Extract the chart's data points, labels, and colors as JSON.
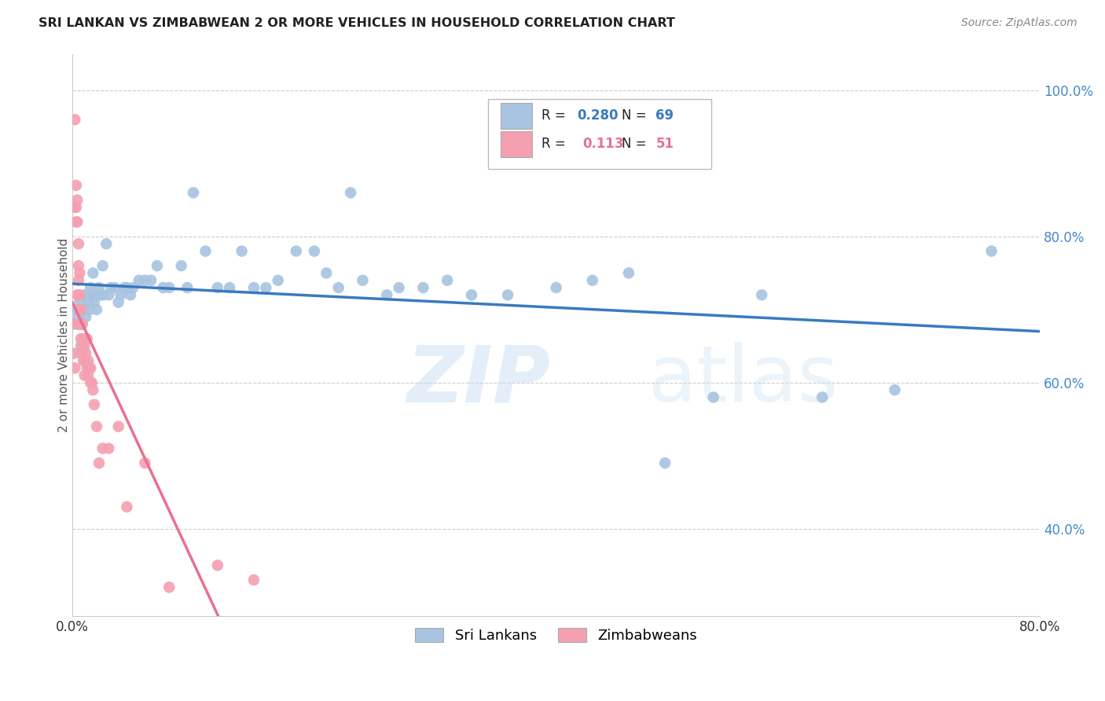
{
  "title": "SRI LANKAN VS ZIMBABWEAN 2 OR MORE VEHICLES IN HOUSEHOLD CORRELATION CHART",
  "source": "Source: ZipAtlas.com",
  "ylabel_label": "2 or more Vehicles in Household",
  "r_sri": 0.28,
  "n_sri": 69,
  "r_zim": 0.113,
  "n_zim": 51,
  "sri_color": "#a8c4e0",
  "zim_color": "#f4a0b0",
  "sri_line_color": "#3a7abf",
  "zim_line_color": "#e87090",
  "zim_dashed_color": "#f0b0c0",
  "background_color": "#ffffff",
  "grid_color": "#cccccc",
  "xlim": [
    0.0,
    0.8
  ],
  "ylim": [
    0.28,
    1.05
  ],
  "sri_x": [
    0.003,
    0.004,
    0.005,
    0.006,
    0.007,
    0.008,
    0.009,
    0.01,
    0.011,
    0.012,
    0.013,
    0.014,
    0.015,
    0.016,
    0.017,
    0.018,
    0.019,
    0.02,
    0.022,
    0.023,
    0.025,
    0.025,
    0.028,
    0.03,
    0.032,
    0.035,
    0.038,
    0.04,
    0.043,
    0.045,
    0.048,
    0.05,
    0.055,
    0.06,
    0.065,
    0.07,
    0.075,
    0.08,
    0.09,
    0.095,
    0.1,
    0.11,
    0.12,
    0.13,
    0.14,
    0.15,
    0.16,
    0.17,
    0.185,
    0.2,
    0.21,
    0.22,
    0.23,
    0.24,
    0.26,
    0.27,
    0.29,
    0.31,
    0.33,
    0.36,
    0.4,
    0.43,
    0.46,
    0.49,
    0.53,
    0.57,
    0.62,
    0.68,
    0.76
  ],
  "sri_y": [
    0.7,
    0.68,
    0.69,
    0.71,
    0.65,
    0.68,
    0.7,
    0.72,
    0.69,
    0.72,
    0.71,
    0.7,
    0.73,
    0.72,
    0.75,
    0.71,
    0.72,
    0.7,
    0.73,
    0.72,
    0.76,
    0.72,
    0.79,
    0.72,
    0.73,
    0.73,
    0.71,
    0.72,
    0.73,
    0.73,
    0.72,
    0.73,
    0.74,
    0.74,
    0.74,
    0.76,
    0.73,
    0.73,
    0.76,
    0.73,
    0.86,
    0.78,
    0.73,
    0.73,
    0.78,
    0.73,
    0.73,
    0.74,
    0.78,
    0.78,
    0.75,
    0.73,
    0.86,
    0.74,
    0.72,
    0.73,
    0.73,
    0.74,
    0.72,
    0.72,
    0.73,
    0.74,
    0.75,
    0.49,
    0.58,
    0.72,
    0.58,
    0.59,
    0.78
  ],
  "zim_x": [
    0.001,
    0.001,
    0.002,
    0.002,
    0.002,
    0.003,
    0.003,
    0.003,
    0.004,
    0.004,
    0.004,
    0.005,
    0.005,
    0.005,
    0.006,
    0.006,
    0.006,
    0.006,
    0.007,
    0.007,
    0.007,
    0.007,
    0.008,
    0.008,
    0.009,
    0.009,
    0.01,
    0.01,
    0.01,
    0.011,
    0.011,
    0.012,
    0.012,
    0.013,
    0.013,
    0.014,
    0.015,
    0.015,
    0.016,
    0.017,
    0.018,
    0.02,
    0.022,
    0.025,
    0.03,
    0.038,
    0.045,
    0.06,
    0.08,
    0.12,
    0.15
  ],
  "zim_y": [
    0.68,
    0.64,
    0.96,
    0.84,
    0.62,
    0.87,
    0.84,
    0.82,
    0.85,
    0.82,
    0.72,
    0.79,
    0.76,
    0.74,
    0.75,
    0.72,
    0.7,
    0.68,
    0.7,
    0.68,
    0.66,
    0.64,
    0.68,
    0.65,
    0.66,
    0.63,
    0.65,
    0.63,
    0.61,
    0.66,
    0.64,
    0.66,
    0.62,
    0.63,
    0.61,
    0.62,
    0.62,
    0.6,
    0.6,
    0.59,
    0.57,
    0.54,
    0.49,
    0.51,
    0.51,
    0.54,
    0.43,
    0.49,
    0.32,
    0.35,
    0.33
  ]
}
